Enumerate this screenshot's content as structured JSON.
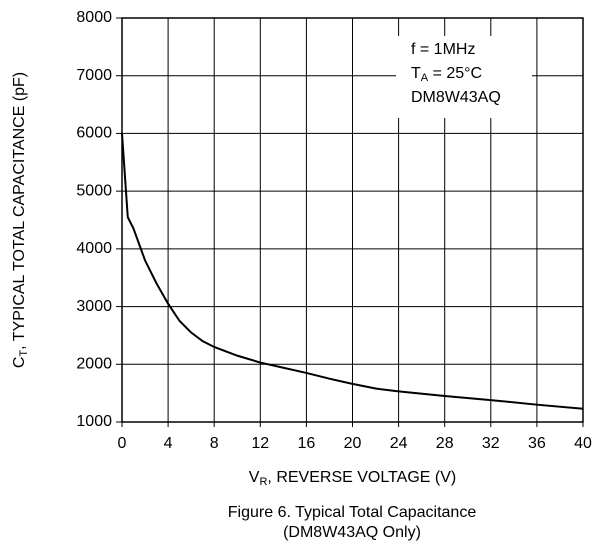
{
  "chart_data": {
    "type": "line",
    "y_label": {
      "main": "C",
      "sub": "T",
      "rest": ", TYPICAL TOTAL CAPACITANCE (pF)"
    },
    "x_label": {
      "main": "V",
      "sub": "R",
      "rest": ", REVERSE VOLTAGE (V)"
    },
    "annotation": [
      "f = 1MHz",
      {
        "main": "T",
        "sub": "A",
        "rest": " = 25°C"
      },
      "DM8W43AQ"
    ],
    "caption": [
      "Figure 6. Typical Total Capacitance",
      "(DM8W43AQ Only)"
    ],
    "x": [
      0,
      0.5,
      1,
      2,
      3,
      4,
      5,
      6,
      7,
      8,
      10,
      12,
      14,
      16,
      18,
      20,
      22,
      24,
      28,
      32,
      36,
      40
    ],
    "series": [
      {
        "color": "#000000",
        "values": [
          6000,
          4550,
          4350,
          3800,
          3400,
          3050,
          2750,
          2550,
          2400,
          2300,
          2150,
          2030,
          1940,
          1850,
          1750,
          1660,
          1580,
          1530,
          1450,
          1380,
          1300,
          1230
        ]
      }
    ],
    "xlim": [
      0,
      40
    ],
    "xticks": [
      0,
      4,
      8,
      12,
      16,
      20,
      24,
      28,
      32,
      36,
      40
    ],
    "ylim": [
      1000,
      8000
    ],
    "yticks": [
      1000,
      2000,
      3000,
      4000,
      5000,
      6000,
      7000,
      8000
    ],
    "grid": true
  }
}
